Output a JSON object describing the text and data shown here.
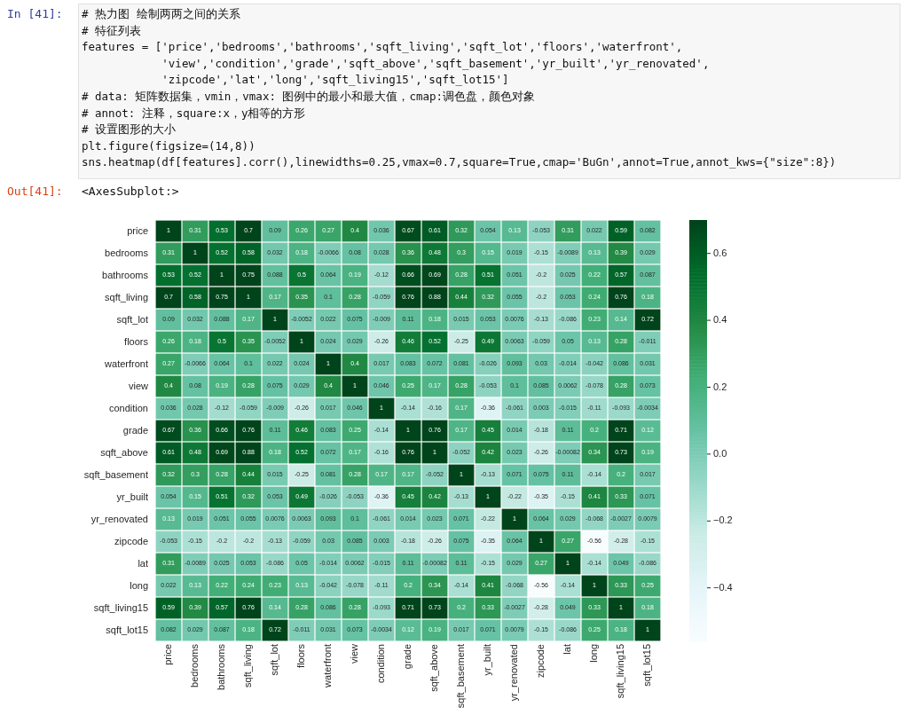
{
  "chart_data": {
    "type": "heatmap",
    "categories": [
      "price",
      "bedrooms",
      "bathrooms",
      "sqft_living",
      "sqft_lot",
      "floors",
      "waterfront",
      "view",
      "condition",
      "grade",
      "sqft_above",
      "sqft_basement",
      "yr_built",
      "yr_renovated",
      "zipcode",
      "lat",
      "long",
      "sqft_living15",
      "sqft_lot15"
    ],
    "y_categories": [
      "price",
      "bedrooms",
      "bathrooms",
      "sqft_living",
      "sqft_lot",
      "floors",
      "waterfront",
      "view",
      "condition",
      "grade",
      "sqft_above",
      "sqft_basement",
      "yr_built",
      "yr_renovated",
      "zipcode",
      "lat",
      "long",
      "sqft_living15",
      "sqft_lot15"
    ],
    "cells": [
      [
        1,
        0.31,
        0.53,
        0.7,
        0.09,
        0.26,
        0.27,
        0.4,
        0.036,
        0.67,
        0.61,
        0.32,
        0.054,
        0.13,
        -0.053,
        0.31,
        0.022,
        0.59,
        0.082
      ],
      [
        0.31,
        1,
        0.52,
        0.58,
        0.032,
        0.18,
        -0.0066,
        0.08,
        0.028,
        0.36,
        0.48,
        0.3,
        0.15,
        0.019,
        -0.15,
        -0.0089,
        0.13,
        0.39,
        0.029
      ],
      [
        0.53,
        0.52,
        1,
        0.75,
        0.088,
        0.5,
        0.064,
        0.19,
        -0.12,
        0.66,
        0.69,
        0.28,
        0.51,
        0.051,
        -0.2,
        0.025,
        0.22,
        0.57,
        0.087
      ],
      [
        0.7,
        0.58,
        0.75,
        1,
        0.17,
        0.35,
        0.1,
        0.28,
        -0.059,
        0.76,
        0.88,
        0.44,
        0.32,
        0.055,
        -0.2,
        0.053,
        0.24,
        0.76,
        0.18
      ],
      [
        0.09,
        0.032,
        0.088,
        0.17,
        1,
        -0.0052,
        0.022,
        0.075,
        -0.009,
        0.11,
        0.18,
        0.015,
        0.053,
        0.0076,
        -0.13,
        -0.086,
        0.23,
        0.14,
        0.72
      ],
      [
        0.26,
        0.18,
        0.5,
        0.35,
        -0.0052,
        1,
        0.024,
        0.029,
        -0.26,
        0.46,
        0.52,
        -0.25,
        0.49,
        0.0063,
        -0.059,
        0.05,
        0.13,
        0.28,
        -0.011
      ],
      [
        0.27,
        -0.0066,
        0.064,
        0.1,
        0.022,
        0.024,
        1,
        0.4,
        0.017,
        0.083,
        0.072,
        0.081,
        -0.026,
        0.093,
        0.03,
        -0.014,
        -0.042,
        0.086,
        0.031
      ],
      [
        0.4,
        0.08,
        0.19,
        0.28,
        0.075,
        0.029,
        0.4,
        1,
        0.046,
        0.25,
        0.17,
        0.28,
        -0.053,
        0.1,
        0.085,
        0.0062,
        -0.078,
        0.28,
        0.073
      ],
      [
        0.036,
        0.028,
        -0.12,
        -0.059,
        -0.009,
        -0.26,
        0.017,
        0.046,
        1,
        -0.14,
        -0.16,
        0.17,
        -0.36,
        -0.061,
        0.003,
        -0.015,
        -0.11,
        -0.093,
        -0.0034
      ],
      [
        0.67,
        0.36,
        0.66,
        0.76,
        0.11,
        0.46,
        0.083,
        0.25,
        -0.14,
        1,
        0.76,
        0.17,
        0.45,
        0.014,
        -0.18,
        0.11,
        0.2,
        0.71,
        0.12
      ],
      [
        0.61,
        0.48,
        0.69,
        0.88,
        0.18,
        0.52,
        0.072,
        0.17,
        -0.16,
        0.76,
        1,
        -0.052,
        0.42,
        0.023,
        -0.26,
        -0.00082,
        0.34,
        0.73,
        0.19
      ],
      [
        0.32,
        0.3,
        0.28,
        0.44,
        0.015,
        -0.25,
        0.081,
        0.28,
        0.17,
        0.17,
        -0.052,
        1,
        -0.13,
        0.071,
        0.075,
        0.11,
        -0.14,
        0.2,
        0.017
      ],
      [
        0.054,
        0.15,
        0.51,
        0.32,
        0.053,
        0.49,
        -0.026,
        -0.053,
        -0.36,
        0.45,
        0.42,
        -0.13,
        1,
        -0.22,
        -0.35,
        -0.15,
        0.41,
        0.33,
        0.071
      ],
      [
        0.13,
        0.019,
        0.051,
        0.055,
        0.0076,
        0.0063,
        0.093,
        0.1,
        -0.061,
        0.014,
        0.023,
        0.071,
        -0.22,
        1,
        0.064,
        0.029,
        -0.068,
        -0.0027,
        0.0079
      ],
      [
        -0.053,
        -0.15,
        -0.2,
        -0.2,
        -0.13,
        -0.059,
        0.03,
        0.085,
        0.003,
        -0.18,
        -0.26,
        0.075,
        -0.35,
        0.064,
        1,
        0.27,
        -0.56,
        -0.28,
        -0.15
      ],
      [
        0.31,
        -0.0089,
        0.025,
        0.053,
        -0.086,
        0.05,
        -0.014,
        0.0062,
        -0.015,
        0.11,
        -0.00082,
        0.11,
        -0.15,
        0.029,
        0.27,
        1,
        -0.14,
        0.049,
        -0.086
      ],
      [
        0.022,
        0.13,
        0.22,
        0.24,
        0.23,
        0.13,
        -0.042,
        -0.078,
        -0.11,
        0.2,
        0.34,
        -0.14,
        0.41,
        -0.068,
        -0.56,
        -0.14,
        1,
        0.33,
        0.25
      ],
      [
        0.59,
        0.39,
        0.57,
        0.76,
        0.14,
        0.28,
        0.086,
        0.28,
        -0.093,
        0.71,
        0.73,
        0.2,
        0.33,
        -0.0027,
        -0.28,
        0.049,
        0.33,
        1,
        0.18
      ],
      [
        0.082,
        0.029,
        0.087,
        0.18,
        0.72,
        -0.011,
        0.031,
        0.073,
        -0.0034,
        0.12,
        0.19,
        0.017,
        0.071,
        0.0079,
        -0.15,
        -0.086,
        0.25,
        0.18,
        1
      ]
    ],
    "data_labels": true,
    "clim": [
      -0.56,
      0.7
    ],
    "cticks": [
      -0.4,
      -0.2,
      {
        "value": 0,
        "label": "0.0"
      },
      0.2,
      0.4,
      0.6
    ],
    "annotations": [
      "In [41]:",
      "# 热力图 绘制两两之间的关系",
      "# 特征列表",
      "features = ['price','bedrooms','bathrooms','sqft_living','sqft_lot','floors','waterfront',",
      "            'view','condition','grade','sqft_above','sqft_basement','yr_built','yr_renovated',",
      "            'zipcode','lat','long','sqft_living15','sqft_lot15']",
      "# data: 矩阵数据集，vmin，vmax: 图例中的最小和最大值，cmap:调色盘，颜色对象",
      "# annot: 注释，square:x，y相等的方形",
      "# 设置图形的大小",
      "plt.figure(figsize=(14,8))",
      "sns.heatmap(df[features].corr(),linewidths=0.25,vmax=0.7,square=True,cmap='BuGn',annot=True,annot_kws={\"size\":8})",
      "Out[41]:",
      "<AxesSubplot:>"
    ]
  }
}
